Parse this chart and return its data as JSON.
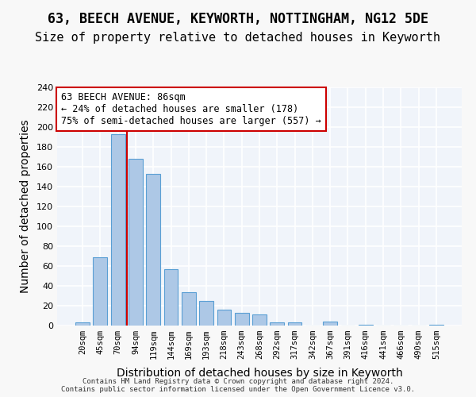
{
  "title": "63, BEECH AVENUE, KEYWORTH, NOTTINGHAM, NG12 5DE",
  "subtitle": "Size of property relative to detached houses in Keyworth",
  "xlabel": "Distribution of detached houses by size in Keyworth",
  "ylabel": "Number of detached properties",
  "categories": [
    "20sqm",
    "45sqm",
    "70sqm",
    "94sqm",
    "119sqm",
    "144sqm",
    "169sqm",
    "193sqm",
    "218sqm",
    "243sqm",
    "268sqm",
    "292sqm",
    "317sqm",
    "342sqm",
    "367sqm",
    "391sqm",
    "416sqm",
    "441sqm",
    "466sqm",
    "490sqm",
    "515sqm"
  ],
  "values": [
    3,
    69,
    193,
    168,
    153,
    57,
    34,
    25,
    16,
    13,
    11,
    3,
    3,
    0,
    4,
    0,
    1,
    0,
    0,
    0,
    1
  ],
  "bar_color": "#adc8e6",
  "bar_edge_color": "#5a9fd4",
  "property_line_x": 2.5,
  "annotation_text": "63 BEECH AVENUE: 86sqm\n← 24% of detached houses are smaller (178)\n75% of semi-detached houses are larger (557) →",
  "annotation_box_color": "#ffffff",
  "annotation_box_edge": "#cc0000",
  "property_line_color": "#cc0000",
  "ylim": [
    0,
    240
  ],
  "yticks": [
    0,
    20,
    40,
    60,
    80,
    100,
    120,
    140,
    160,
    180,
    200,
    220,
    240
  ],
  "title_fontsize": 12,
  "subtitle_fontsize": 11,
  "xlabel_fontsize": 10,
  "ylabel_fontsize": 10,
  "footer_text": "Contains HM Land Registry data © Crown copyright and database right 2024.\nContains public sector information licensed under the Open Government Licence v3.0.",
  "background_color": "#f0f4fa",
  "grid_color": "#ffffff"
}
